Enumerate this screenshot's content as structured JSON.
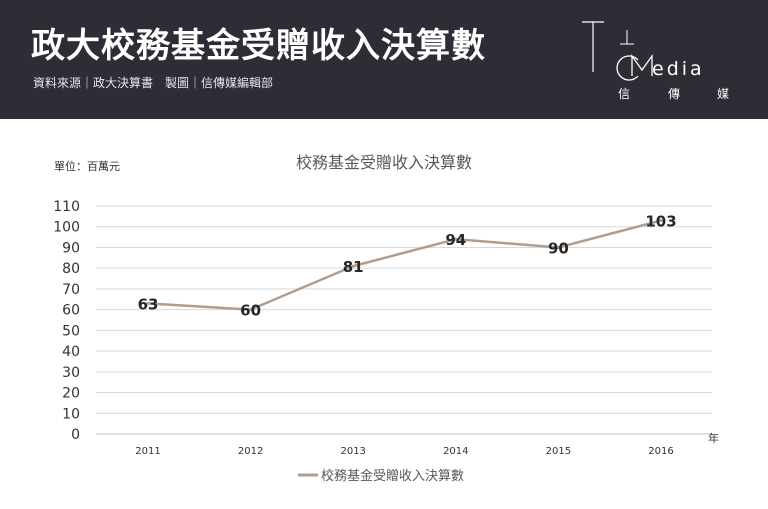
{
  "header": {
    "title": "政大校務基金受贈收入決算數",
    "source": "資料來源｜政大決算書　製圖｜信傳媒編輯部",
    "logo_word": "edia",
    "logo_sub": [
      "信",
      "傳",
      "媒"
    ]
  },
  "colors": {
    "header_bg": "#2f2c36",
    "line": "#b29d8d",
    "grid": "#d9d9d9"
  },
  "chart_data": {
    "type": "line",
    "title": "校務基金受贈收入決算數",
    "unit_label": "單位：百萬元",
    "xlabel": "年",
    "ylabel": "",
    "categories": [
      "2011",
      "2012",
      "2013",
      "2014",
      "2015",
      "2016"
    ],
    "series": [
      {
        "name": "校務基金受贈收入決算數",
        "values": [
          63,
          60,
          81,
          94,
          90,
          103
        ]
      }
    ],
    "ylim": [
      0,
      110
    ],
    "yticks": [
      0,
      10,
      20,
      30,
      40,
      50,
      60,
      70,
      80,
      90,
      100,
      110
    ],
    "grid": true,
    "legend": "bottom"
  }
}
